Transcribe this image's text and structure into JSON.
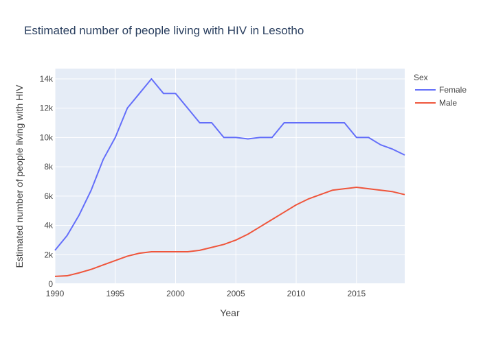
{
  "chart_data": {
    "type": "line",
    "title": "Estimated number of people living with HIV in Lesotho",
    "xlabel": "Year",
    "ylabel": "Estimated number of people living with HIV",
    "xlim": [
      1990,
      2019
    ],
    "ylim": [
      0,
      14700
    ],
    "x_ticks": [
      {
        "value": 1990,
        "label": "1990"
      },
      {
        "value": 1995,
        "label": "1995"
      },
      {
        "value": 2000,
        "label": "2000"
      },
      {
        "value": 2005,
        "label": "2005"
      },
      {
        "value": 2010,
        "label": "2010"
      },
      {
        "value": 2015,
        "label": "2015"
      }
    ],
    "y_ticks": [
      {
        "value": 0,
        "label": "0"
      },
      {
        "value": 2000,
        "label": "2k"
      },
      {
        "value": 4000,
        "label": "4k"
      },
      {
        "value": 6000,
        "label": "6k"
      },
      {
        "value": 8000,
        "label": "8k"
      },
      {
        "value": 10000,
        "label": "10k"
      },
      {
        "value": 12000,
        "label": "12k"
      },
      {
        "value": 14000,
        "label": "14k"
      }
    ],
    "legend_title": "Sex",
    "legend_position": "right",
    "x": [
      1990,
      1991,
      1992,
      1993,
      1994,
      1995,
      1996,
      1997,
      1998,
      1999,
      2000,
      2001,
      2002,
      2003,
      2004,
      2005,
      2006,
      2007,
      2008,
      2009,
      2010,
      2011,
      2012,
      2013,
      2014,
      2015,
      2016,
      2017,
      2018,
      2019
    ],
    "series": [
      {
        "name": "Female",
        "color": "#636efa",
        "values": [
          2300,
          3300,
          4700,
          6400,
          8500,
          10000,
          12000,
          13000,
          14000,
          13000,
          13000,
          12000,
          11000,
          11000,
          10000,
          10000,
          9900,
          10000,
          10000,
          11000,
          11000,
          11000,
          11000,
          11000,
          11000,
          10000,
          10000,
          9500,
          9200,
          8800
        ]
      },
      {
        "name": "Male",
        "color": "#ef553b",
        "values": [
          520,
          560,
          760,
          1000,
          1300,
          1600,
          1900,
          2100,
          2200,
          2200,
          2200,
          2200,
          2300,
          2500,
          2700,
          3000,
          3400,
          3900,
          4400,
          4900,
          5400,
          5800,
          6100,
          6400,
          6500,
          6600,
          6500,
          6400,
          6300,
          6100
        ]
      }
    ]
  },
  "colors": {
    "plot_bg": "#e5ecf6",
    "grid": "#ffffff",
    "text": "#444444",
    "title": "#2a3f5f"
  }
}
